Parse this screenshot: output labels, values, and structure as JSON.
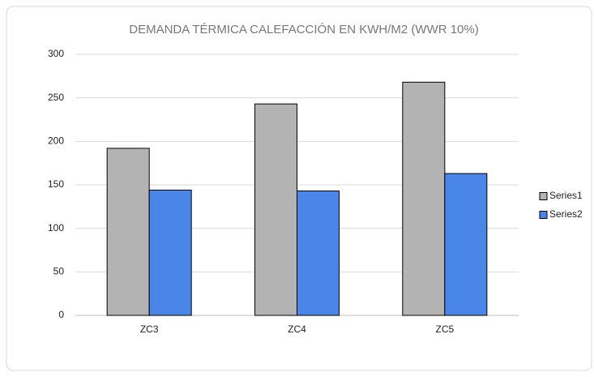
{
  "chart_data": {
    "type": "bar",
    "title": "DEMANDA TÉRMICA CALEFACCIÓN EN KWH/M2 (WWR 10%)",
    "categories": [
      "ZC3",
      "ZC4",
      "ZC5"
    ],
    "series": [
      {
        "name": "Series1",
        "color": "#b3b3b3",
        "values": [
          192,
          243,
          268
        ]
      },
      {
        "name": "Series2",
        "color": "#4a86e8",
        "values": [
          144,
          143,
          163
        ]
      }
    ],
    "ylim": [
      0,
      300
    ],
    "yticks": [
      0,
      50,
      100,
      150,
      200,
      250,
      300
    ],
    "grid": true,
    "legend": "right"
  }
}
